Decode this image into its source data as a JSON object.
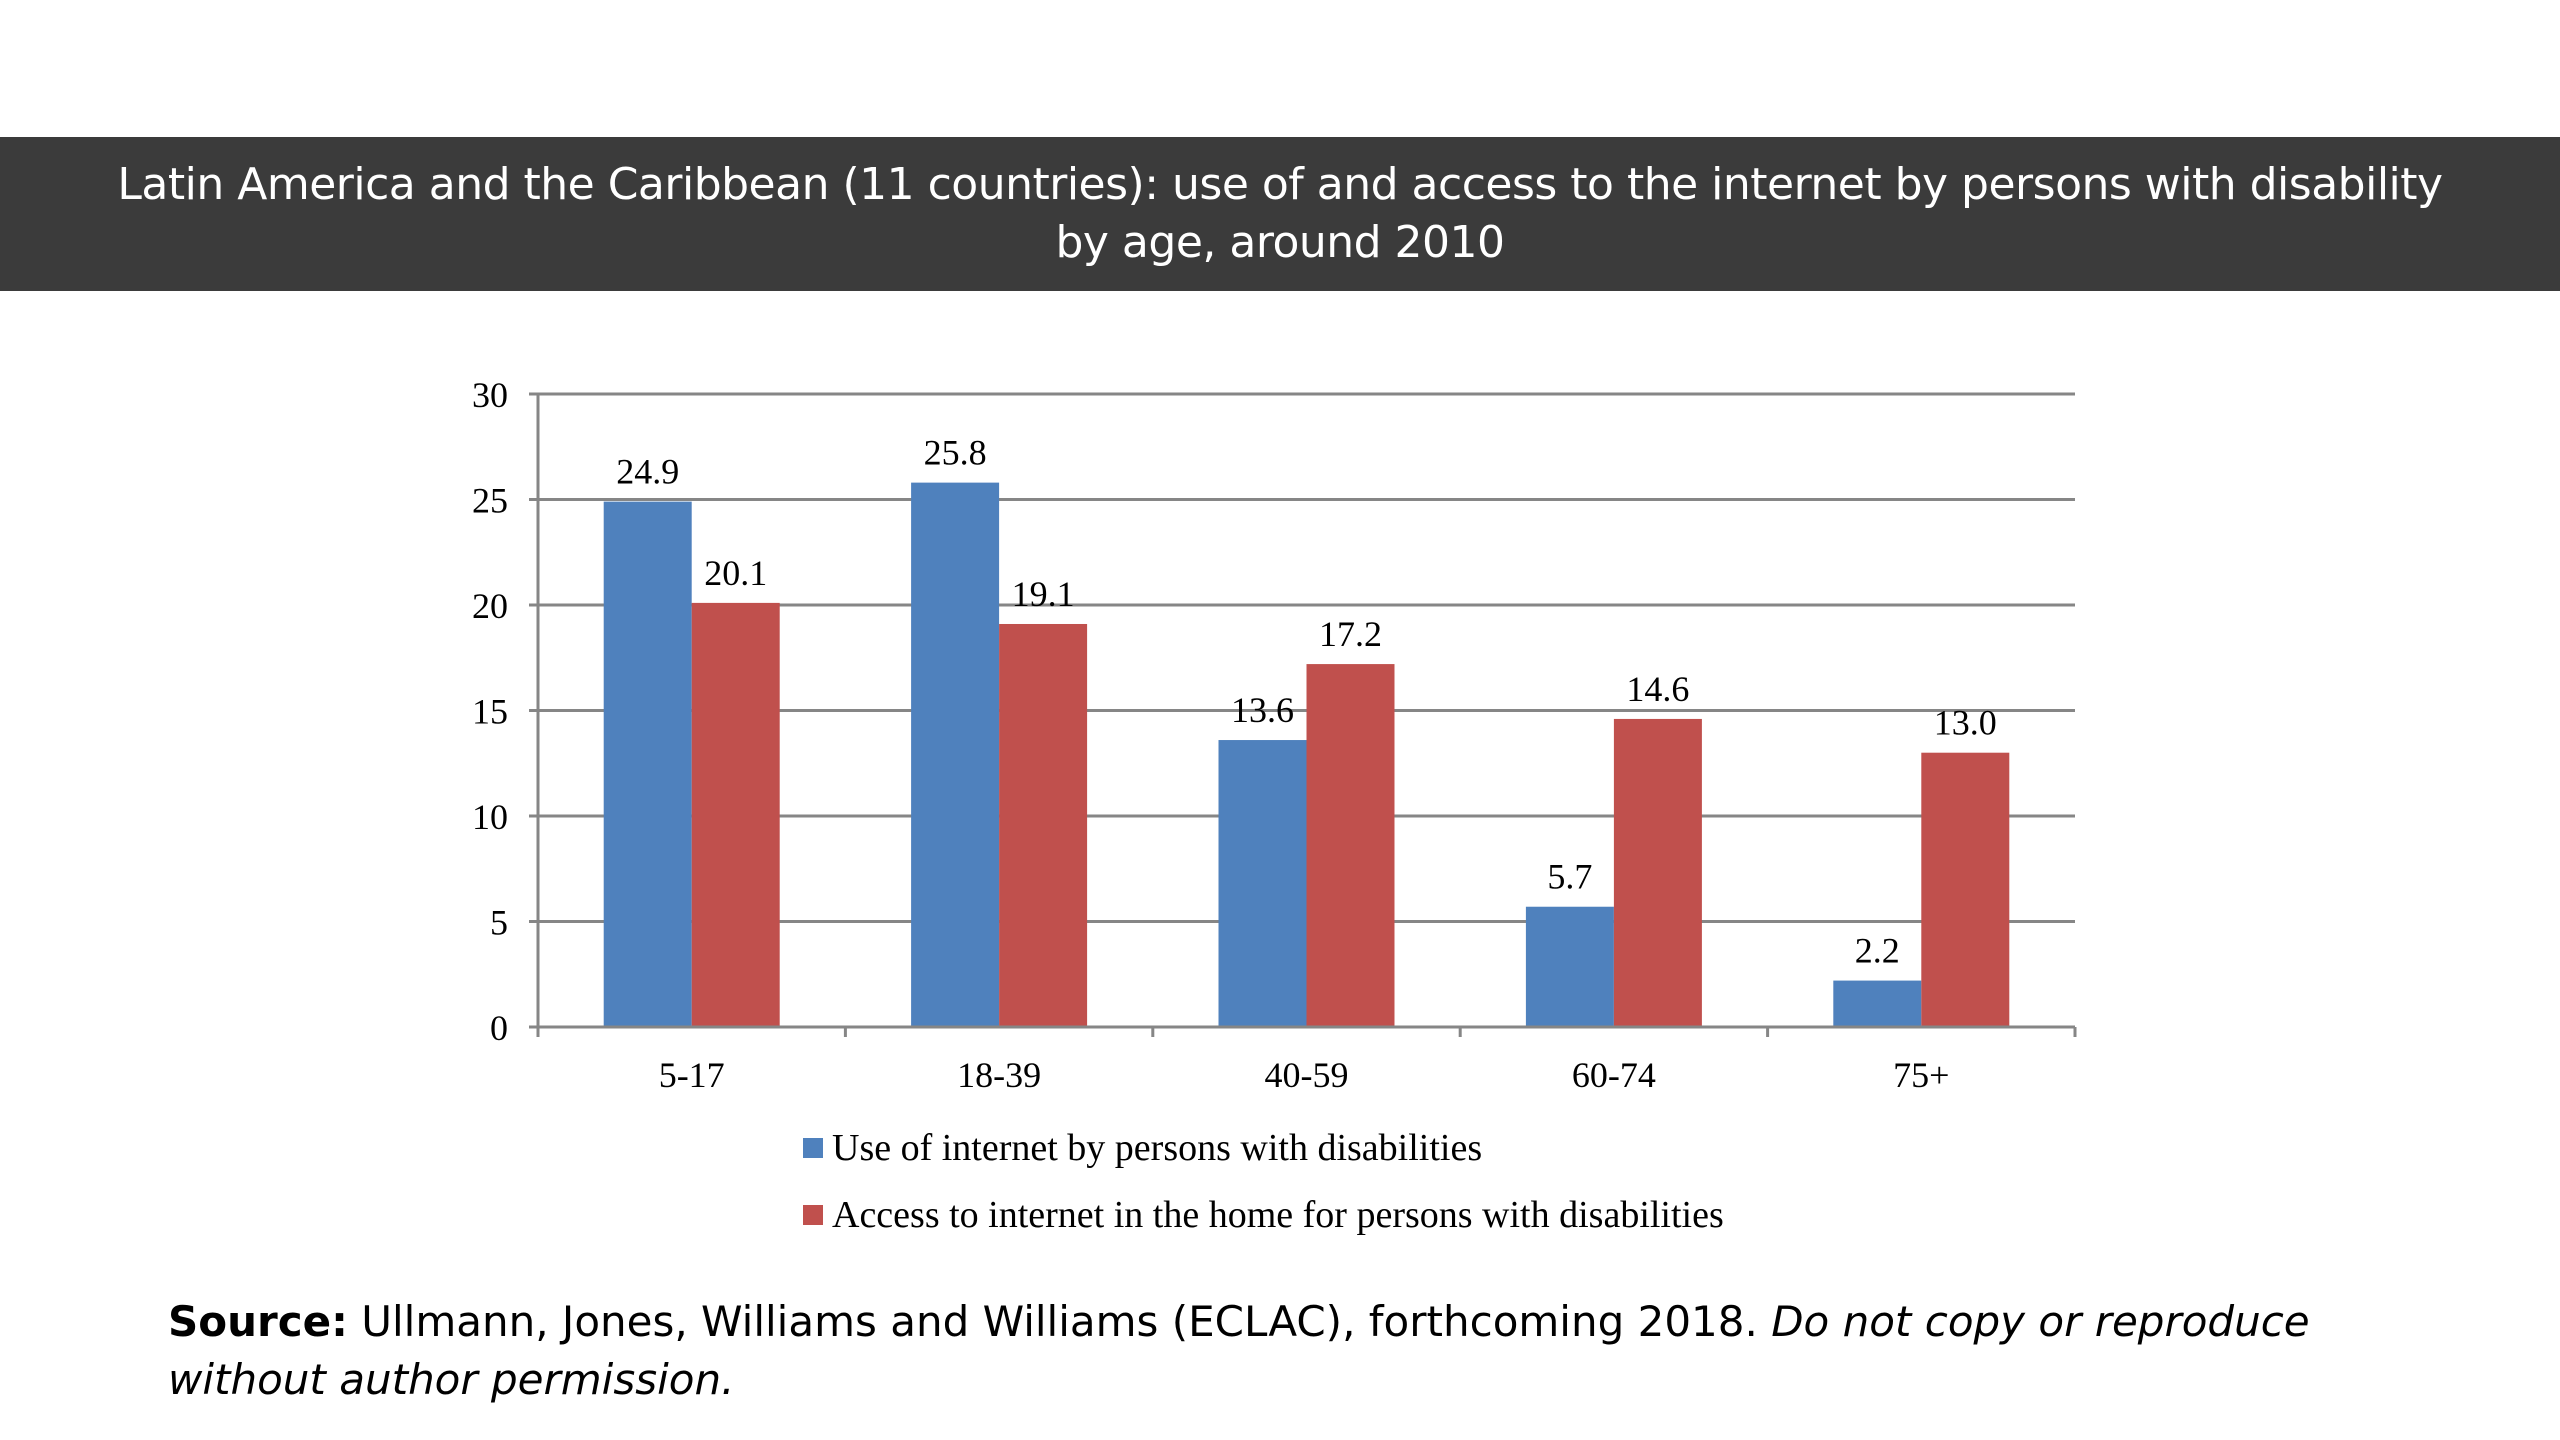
{
  "chart_data": {
    "type": "bar",
    "title": "Latin America and the Caribbean (11 countries): use of and access to the internet by persons with disability by age, around 2010",
    "categories": [
      "5-17",
      "18-39",
      "40-59",
      "60-74",
      "75+"
    ],
    "series": [
      {
        "name": "Use of internet by persons with disabilities",
        "color": "#4f81bd",
        "values": [
          24.9,
          25.8,
          13.6,
          5.7,
          2.2
        ],
        "labels": [
          "24.9",
          "25.8",
          "13.6",
          "5.7",
          "2.2"
        ]
      },
      {
        "name": "Access to internet in the home for persons with disabilities",
        "color": "#c0504d",
        "values": [
          20.1,
          19.1,
          17.2,
          14.6,
          13.0
        ],
        "labels": [
          "20.1",
          "19.1",
          "17.2",
          "14.6",
          "13.0"
        ]
      }
    ],
    "yticks": [
      "0",
      "5",
      "10",
      "15",
      "20",
      "25",
      "30"
    ],
    "ylim": [
      0,
      30
    ],
    "xlabel": "",
    "ylabel": "",
    "grid": true,
    "legend": "bottom"
  },
  "source": {
    "prefix": "Source:",
    "text": " Ullmann, Jones, Williams and Williams (ECLAC), forthcoming 2018. ",
    "note": "Do not copy or reproduce without author permission."
  }
}
